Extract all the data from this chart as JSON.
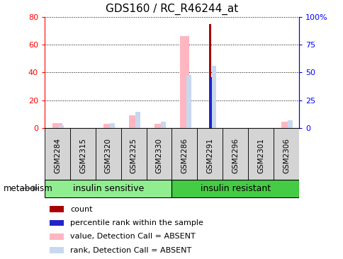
{
  "title": "GDS160 / RC_R46244_at",
  "samples": [
    "GSM2284",
    "GSM2315",
    "GSM2320",
    "GSM2325",
    "GSM2330",
    "GSM2286",
    "GSM2291",
    "GSM2296",
    "GSM2301",
    "GSM2306"
  ],
  "count_values": [
    0,
    0,
    0,
    0,
    0,
    0,
    75,
    0,
    0,
    0
  ],
  "percentile_values": [
    0,
    0,
    0,
    0,
    0,
    0,
    46,
    0,
    0,
    0
  ],
  "absent_value_values": [
    3.5,
    0,
    3,
    9,
    3,
    66,
    0,
    0,
    0,
    4.5
  ],
  "absent_rank_values": [
    2,
    0,
    3.5,
    12,
    4.5,
    38,
    45,
    0,
    0,
    5.5
  ],
  "groups": [
    {
      "label": "insulin sensitive",
      "start": 0,
      "end": 5,
      "color": "#90ee90"
    },
    {
      "label": "insulin resistant",
      "start": 5,
      "end": 10,
      "color": "#44cc44"
    }
  ],
  "left_ylim": [
    0,
    80
  ],
  "right_ylim": [
    0,
    100
  ],
  "left_yticks": [
    0,
    20,
    40,
    60,
    80
  ],
  "right_yticks": [
    0,
    25,
    50,
    75,
    100
  ],
  "right_yticklabels": [
    "0",
    "25",
    "50",
    "75",
    "100%"
  ],
  "count_color": "#aa0000",
  "percentile_color": "#2222cc",
  "absent_value_color": "#ffb6c1",
  "absent_rank_color": "#c8d8f0",
  "sample_cell_color": "#d4d4d4",
  "plot_bg_color": "#ffffff",
  "legend_items": [
    {
      "color": "#aa0000",
      "label": "count"
    },
    {
      "color": "#2222cc",
      "label": "percentile rank within the sample"
    },
    {
      "color": "#ffb6c1",
      "label": "value, Detection Call = ABSENT"
    },
    {
      "color": "#c8d8f0",
      "label": "rank, Detection Call = ABSENT"
    }
  ],
  "metabolism_label": "metabolism",
  "bar_width": 0.35,
  "group_label_fontsize": 9,
  "tick_label_fontsize": 7.5,
  "title_fontsize": 11
}
